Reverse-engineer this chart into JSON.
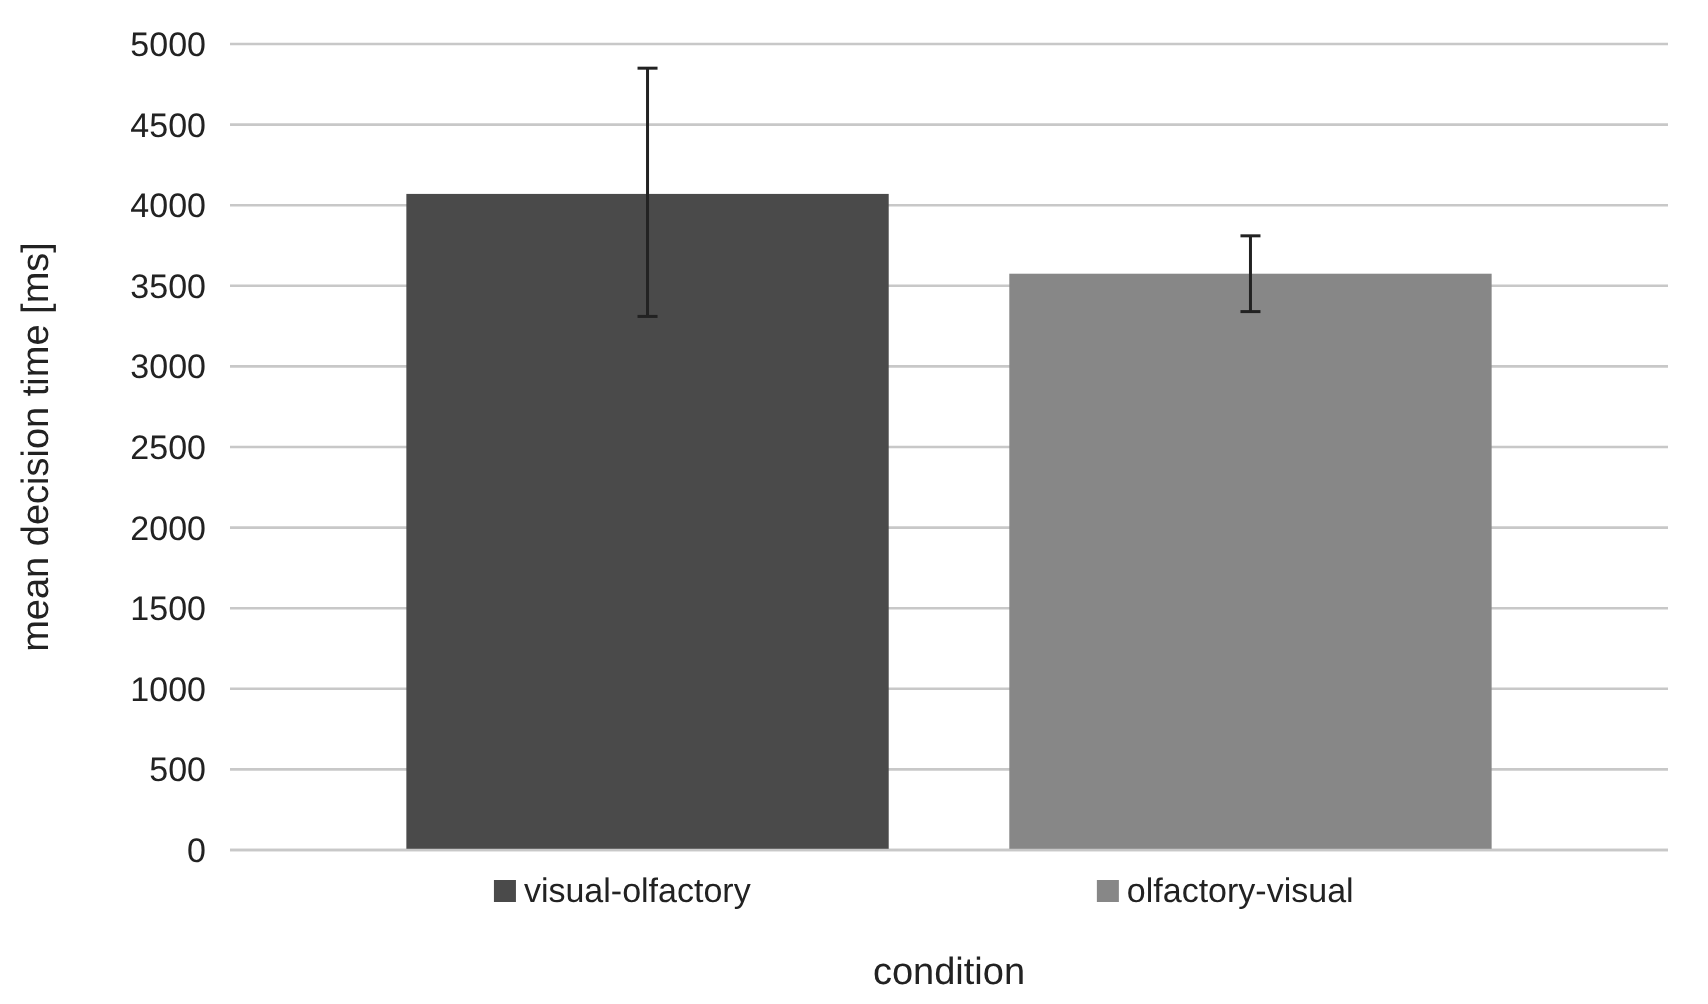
{
  "chart_data": {
    "type": "bar",
    "xlabel": "condition",
    "ylabel": "mean decision time [ms]",
    "categories": [
      null
    ],
    "series": [
      {
        "name": "visual-olfactory",
        "color": "#4a4a4a",
        "values": [
          4070
        ],
        "errors": [
          [
            3310,
            4850
          ]
        ]
      },
      {
        "name": "olfactory-visual",
        "color": "#878787",
        "values": [
          3575
        ],
        "errors": [
          [
            3340,
            3810
          ]
        ]
      }
    ],
    "ylim": [
      0,
      5000
    ],
    "yticks": [
      0,
      500,
      1000,
      1500,
      2000,
      2500,
      3000,
      3500,
      4000,
      4500,
      5000
    ],
    "grid": "y",
    "legend": "bottom"
  }
}
